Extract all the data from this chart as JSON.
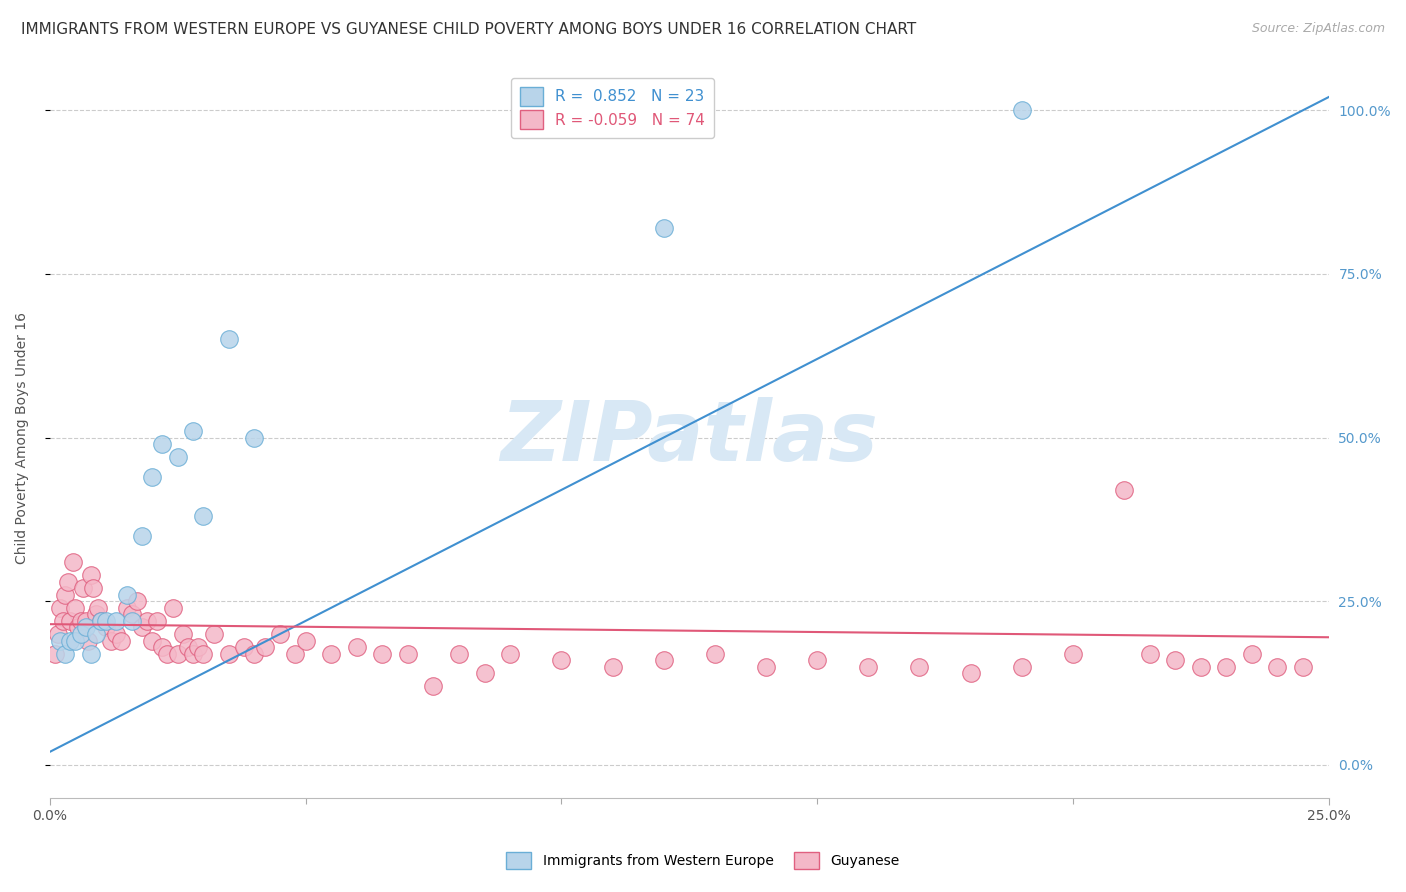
{
  "title": "IMMIGRANTS FROM WESTERN EUROPE VS GUYANESE CHILD POVERTY AMONG BOYS UNDER 16 CORRELATION CHART",
  "source": "Source: ZipAtlas.com",
  "ylabel": "Child Poverty Among Boys Under 16",
  "legend_blue_r": "0.852",
  "legend_blue_n": "23",
  "legend_pink_r": "-0.059",
  "legend_pink_n": "74",
  "legend_blue_label": "Immigrants from Western Europe",
  "legend_pink_label": "Guyanese",
  "watermark": "ZIPatlas",
  "blue_scatter_x": [
    0.2,
    0.3,
    0.4,
    0.5,
    0.6,
    0.7,
    0.8,
    0.9,
    1.0,
    1.1,
    1.3,
    1.5,
    1.6,
    1.8,
    2.0,
    2.2,
    2.5,
    2.8,
    3.0,
    3.5,
    4.0,
    12.0,
    19.0
  ],
  "blue_scatter_y": [
    19,
    17,
    19,
    19,
    20,
    21,
    17,
    20,
    22,
    22,
    22,
    26,
    22,
    35,
    44,
    49,
    47,
    51,
    38,
    65,
    50,
    82,
    100
  ],
  "pink_scatter_x": [
    0.1,
    0.15,
    0.2,
    0.25,
    0.3,
    0.35,
    0.4,
    0.45,
    0.5,
    0.55,
    0.6,
    0.65,
    0.7,
    0.75,
    0.8,
    0.85,
    0.9,
    0.95,
    1.0,
    1.1,
    1.2,
    1.3,
    1.4,
    1.5,
    1.6,
    1.7,
    1.8,
    1.9,
    2.0,
    2.1,
    2.2,
    2.3,
    2.4,
    2.5,
    2.6,
    2.7,
    2.8,
    2.9,
    3.0,
    3.2,
    3.5,
    3.8,
    4.0,
    4.2,
    4.5,
    4.8,
    5.0,
    5.5,
    6.0,
    6.5,
    7.0,
    8.0,
    9.0,
    10.0,
    11.0,
    12.0,
    13.0,
    14.0,
    15.0,
    16.0,
    17.0,
    18.0,
    19.0,
    20.0,
    21.0,
    21.5,
    22.0,
    22.5,
    23.0,
    23.5,
    24.0,
    24.5,
    8.5,
    7.5
  ],
  "pink_scatter_y": [
    17,
    20,
    24,
    22,
    26,
    28,
    22,
    31,
    24,
    21,
    22,
    27,
    22,
    19,
    29,
    27,
    23,
    24,
    22,
    21,
    19,
    20,
    19,
    24,
    23,
    25,
    21,
    22,
    19,
    22,
    18,
    17,
    24,
    17,
    20,
    18,
    17,
    18,
    17,
    20,
    17,
    18,
    17,
    18,
    20,
    17,
    19,
    17,
    18,
    17,
    17,
    17,
    17,
    16,
    15,
    16,
    17,
    15,
    16,
    15,
    15,
    14,
    15,
    17,
    42,
    17,
    16,
    15,
    15,
    17,
    15,
    15,
    14,
    12
  ],
  "blue_line_x": [
    0.0,
    25.0
  ],
  "blue_line_y": [
    2.0,
    102.0
  ],
  "pink_line_x": [
    0.0,
    25.0
  ],
  "pink_line_y": [
    21.5,
    19.5
  ],
  "xlim": [
    0.0,
    25.0
  ],
  "ylim": [
    -5.0,
    105.0
  ],
  "xticks": [
    0.0,
    25.0
  ],
  "xticklabels": [
    "0.0%",
    "25.0%"
  ],
  "xminorticks": [
    5.0,
    10.0,
    15.0,
    20.0
  ],
  "yticks": [
    0.0,
    25.0,
    50.0,
    75.0,
    100.0
  ],
  "yticklabels_right": [
    "0.0%",
    "25.0%",
    "50.0%",
    "75.0%",
    "100.0%"
  ],
  "blue_color": "#b8d4ea",
  "blue_edge": "#6aaed6",
  "pink_color": "#f4b8c8",
  "pink_edge": "#e06080",
  "blue_line_color": "#4090d0",
  "pink_line_color": "#e05878",
  "grid_color": "#cccccc",
  "background_color": "#ffffff",
  "title_fontsize": 11,
  "source_fontsize": 9,
  "axis_label_color": "#555555",
  "right_tick_color": "#5599cc",
  "watermark_color": "#d8e8f5",
  "watermark_fontsize": 60
}
